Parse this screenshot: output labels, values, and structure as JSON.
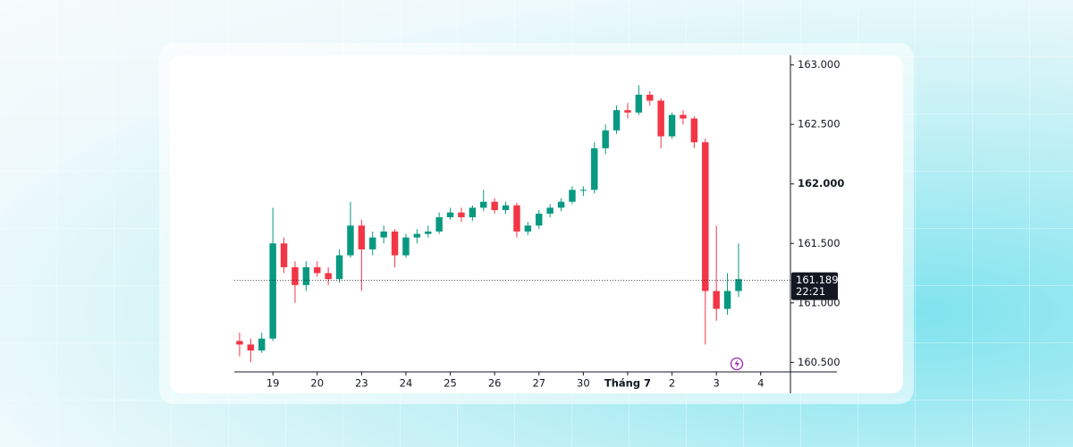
{
  "chart_data": {
    "type": "candlestick",
    "x": [
      -0.75,
      -0.5,
      -0.25,
      0,
      0.25,
      0.5,
      0.75,
      1,
      1.25,
      1.5,
      1.75,
      2,
      2.25,
      2.5,
      2.75,
      3,
      3.25,
      3.5,
      3.75,
      4,
      4.25,
      4.5,
      4.75,
      5,
      5.25,
      5.5,
      5.75,
      6,
      6.25,
      6.5,
      6.75,
      7,
      7.25,
      7.5,
      7.75,
      8,
      8.25,
      8.5,
      8.75,
      9,
      9.25,
      9.5,
      9.75,
      10,
      10.25,
      10.5
    ],
    "open": [
      160.68,
      160.65,
      160.6,
      160.7,
      161.5,
      161.3,
      161.15,
      161.3,
      161.25,
      161.2,
      161.4,
      161.65,
      161.45,
      161.55,
      161.6,
      161.4,
      161.55,
      161.58,
      161.6,
      161.72,
      161.76,
      161.72,
      161.8,
      161.85,
      161.78,
      161.82,
      161.6,
      161.65,
      161.75,
      161.8,
      161.85,
      161.95,
      161.95,
      162.3,
      162.45,
      162.62,
      162.6,
      162.75,
      162.7,
      162.4,
      162.58,
      162.55,
      162.35,
      161.1,
      160.95,
      161.1
    ],
    "high": [
      160.75,
      160.7,
      160.75,
      161.8,
      161.55,
      161.35,
      161.35,
      161.35,
      161.3,
      161.45,
      161.85,
      161.7,
      161.6,
      161.65,
      161.62,
      161.58,
      161.62,
      161.65,
      161.76,
      161.8,
      161.8,
      161.82,
      161.95,
      161.88,
      161.85,
      161.84,
      161.68,
      161.78,
      161.83,
      161.88,
      161.98,
      161.98,
      162.35,
      162.5,
      162.66,
      162.68,
      162.83,
      162.78,
      162.72,
      162.6,
      162.62,
      162.57,
      162.38,
      161.65,
      161.25,
      161.5
    ],
    "low": [
      160.55,
      160.5,
      160.58,
      160.68,
      161.25,
      161.0,
      161.1,
      161.22,
      161.15,
      161.17,
      161.38,
      161.1,
      161.4,
      161.5,
      161.3,
      161.38,
      161.5,
      161.55,
      161.58,
      161.7,
      161.68,
      161.69,
      161.77,
      161.75,
      161.75,
      161.55,
      161.57,
      161.62,
      161.72,
      161.77,
      161.83,
      161.9,
      161.92,
      162.25,
      162.42,
      162.55,
      162.58,
      162.66,
      162.3,
      162.38,
      162.5,
      162.3,
      160.65,
      160.85,
      160.9,
      161.05
    ],
    "close": [
      160.65,
      160.6,
      160.7,
      161.5,
      161.3,
      161.15,
      161.3,
      161.25,
      161.2,
      161.4,
      161.65,
      161.45,
      161.55,
      161.6,
      161.4,
      161.55,
      161.58,
      161.6,
      161.72,
      161.76,
      161.72,
      161.8,
      161.85,
      161.78,
      161.82,
      161.6,
      161.65,
      161.75,
      161.8,
      161.85,
      161.95,
      161.95,
      162.3,
      162.45,
      162.62,
      162.6,
      162.75,
      162.7,
      162.4,
      162.58,
      162.55,
      162.35,
      161.1,
      160.95,
      161.1,
      161.2
    ],
    "up_color": "#089981",
    "down_color": "#f23645",
    "xlim": [
      -0.87,
      11.67
    ],
    "ylim": [
      160.42,
      163.08
    ],
    "xticks": [
      {
        "value": 0,
        "label": "19"
      },
      {
        "value": 1,
        "label": "20"
      },
      {
        "value": 2,
        "label": "23"
      },
      {
        "value": 3,
        "label": "24"
      },
      {
        "value": 4,
        "label": "25"
      },
      {
        "value": 5,
        "label": "26"
      },
      {
        "value": 6,
        "label": "27"
      },
      {
        "value": 7,
        "label": "30"
      },
      {
        "value": 8,
        "label": "Tháng 7"
      },
      {
        "value": 9,
        "label": "2"
      },
      {
        "value": 10,
        "label": "3"
      },
      {
        "value": 11,
        "label": "4"
      }
    ],
    "yticks": [
      {
        "value": 160.5,
        "label": "160.500"
      },
      {
        "value": 161,
        "label": "161.000"
      },
      {
        "value": 161.5,
        "label": "161.500"
      },
      {
        "value": 162,
        "label": "162.000"
      },
      {
        "value": 162.5,
        "label": "162.500"
      },
      {
        "value": 163,
        "label": "163.000"
      }
    ],
    "last_price": {
      "value": 161.189,
      "time": "22:21"
    }
  }
}
